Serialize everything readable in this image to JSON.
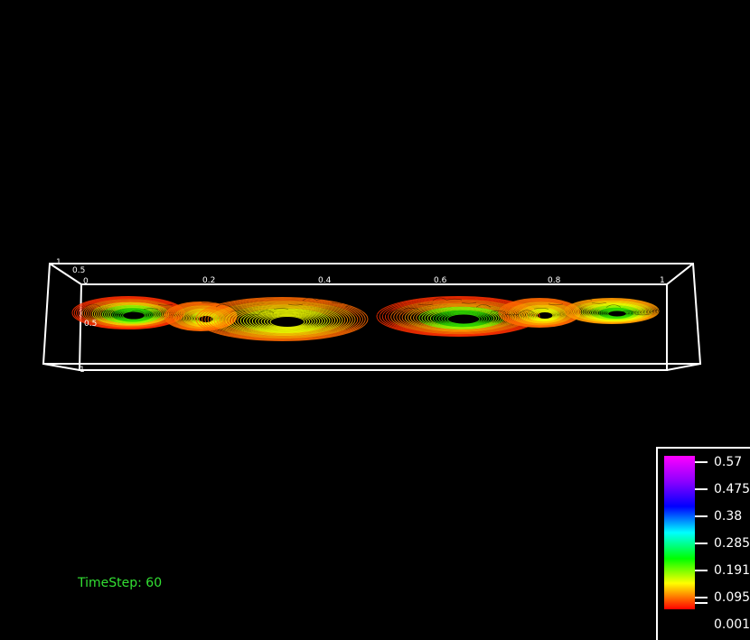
{
  "timestep_label": "TimeStep: 60",
  "axes": {
    "x_ticks": [
      "0",
      "0.2",
      "0.4",
      "0.6",
      "0.8",
      "1"
    ],
    "y_ticks": [
      "1",
      "0.5"
    ],
    "z_ticks": [
      "0.5",
      "1"
    ]
  },
  "colorbar": {
    "labels": [
      "0.57",
      "0.475",
      "0.38",
      "0.285",
      "0.191",
      "0.095",
      "0.001"
    ],
    "colors": [
      "#ff00ff",
      "#8a00ff",
      "#0000ff",
      "#00ffff",
      "#00ff00",
      "#ffff00",
      "#ff0000"
    ]
  },
  "streamline_colors": [
    "#ff3000",
    "#ff6a00",
    "#ff9a00",
    "#ffcc00",
    "#f2ff00",
    "#a0ff00",
    "#33e000"
  ]
}
